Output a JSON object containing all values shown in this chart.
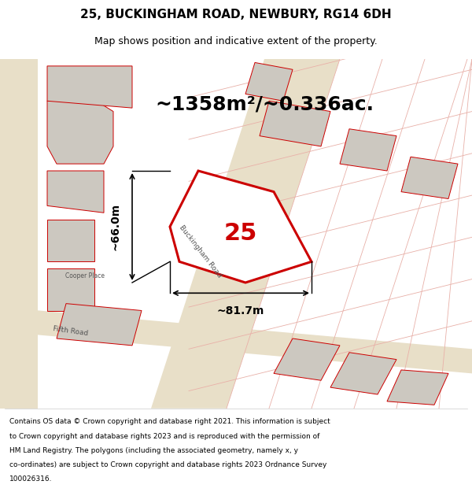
{
  "title": "25, BUCKINGHAM ROAD, NEWBURY, RG14 6DH",
  "subtitle": "Map shows position and indicative extent of the property.",
  "area_text": "~1358m²/~0.336ac.",
  "label_25": "25",
  "dim_width": "~81.7m",
  "dim_height": "~66.0m",
  "footer": "Contains OS data © Crown copyright and database right 2021. This information is subject to Crown copyright and database rights 2023 and is reproduced with the permission of HM Land Registry. The polygons (including the associated geometry, namely x, y co-ordinates) are subject to Crown copyright and database rights 2023 Ordnance Survey 100026316.",
  "bg_color": "#f0ede8",
  "map_bg": "#f0ede8",
  "plot_outline_color": "#cc0000",
  "plot_fill_color": "#f5f5f5",
  "road_color": "#e8e0d0",
  "building_fill": "#d4cfc8",
  "building_stroke": "#cc0000",
  "title_fontsize": 11,
  "subtitle_fontsize": 9,
  "area_fontsize": 18,
  "label_fontsize": 22,
  "dim_fontsize": 10,
  "footer_fontsize": 6.5
}
